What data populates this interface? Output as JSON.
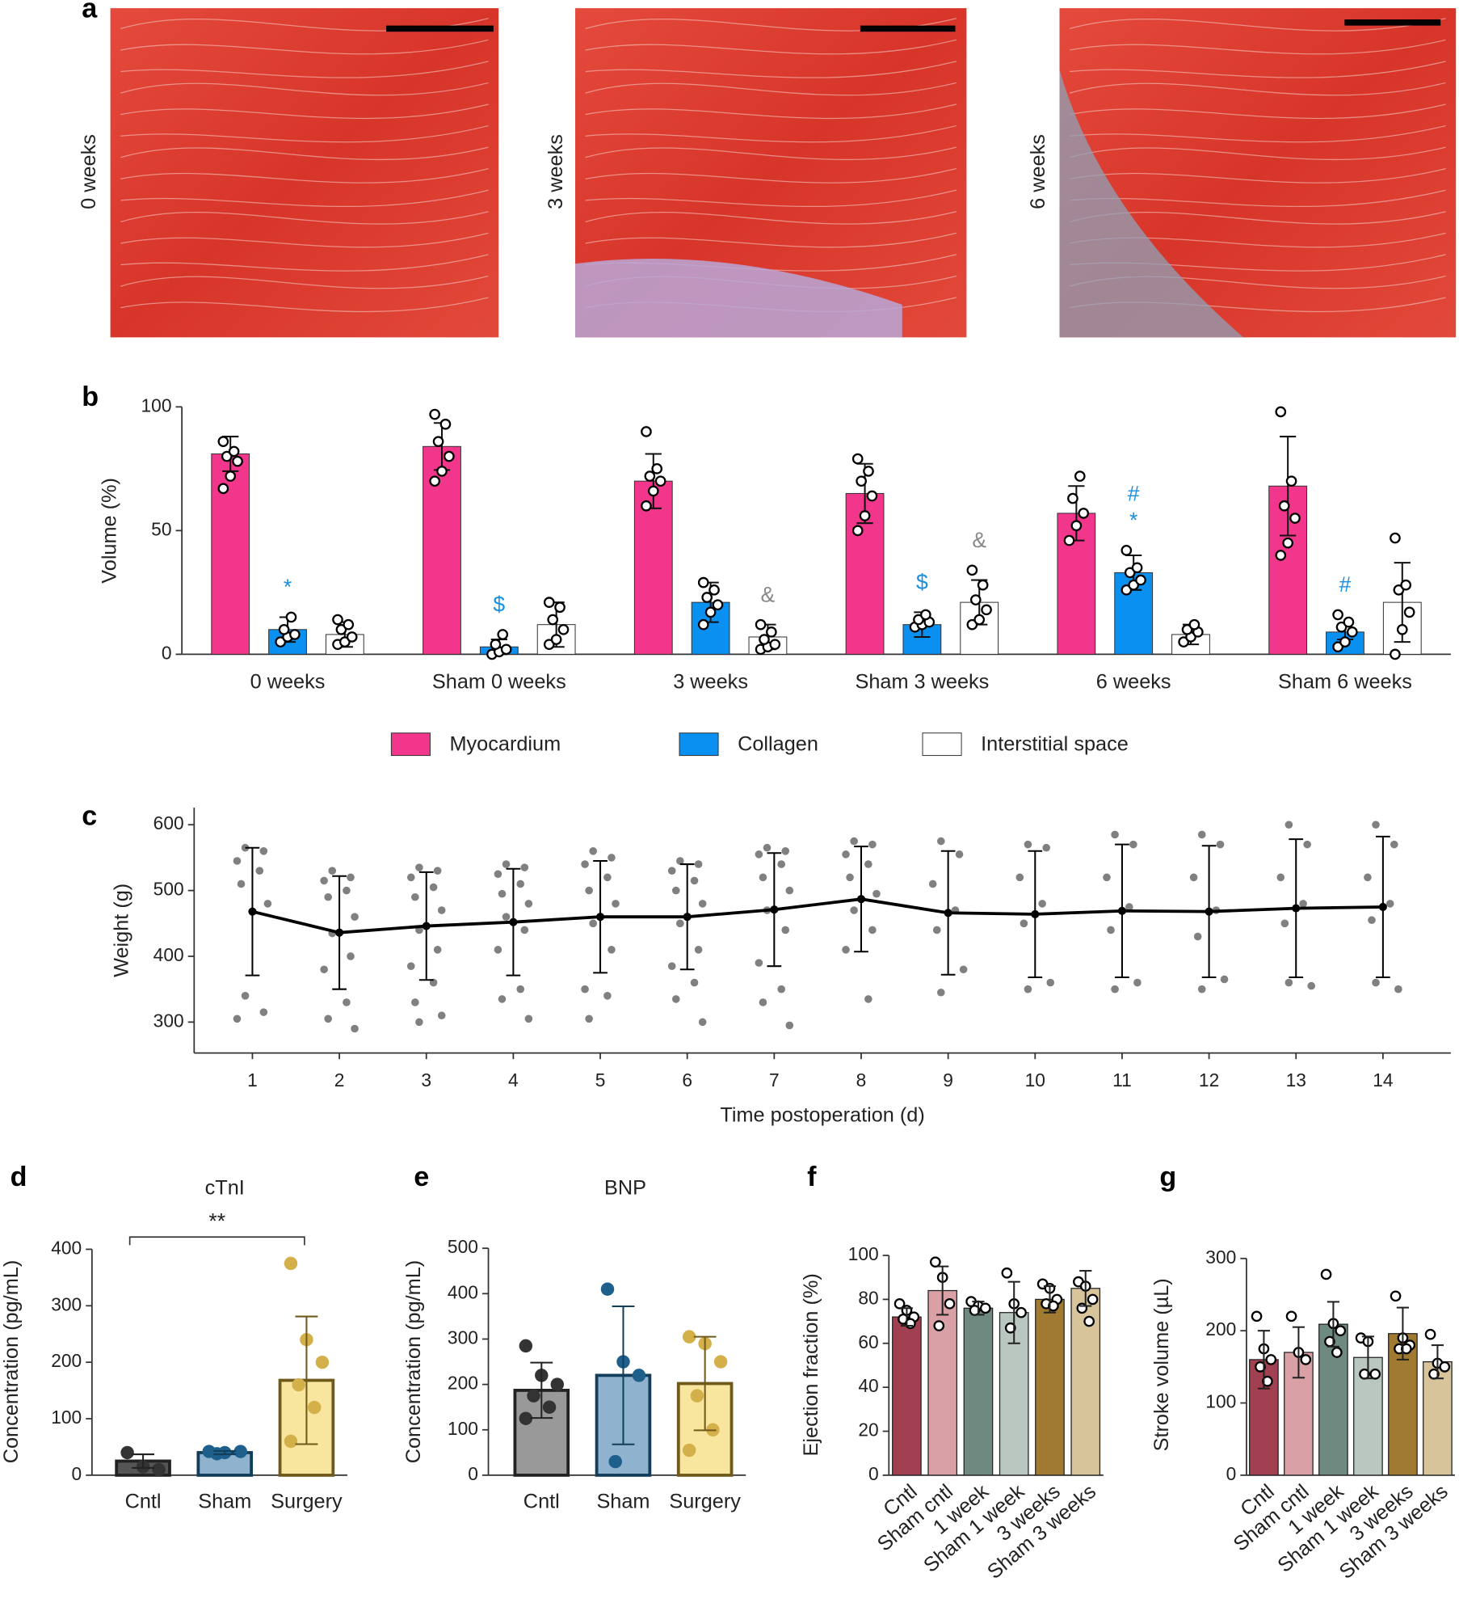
{
  "chart_data": [
    {
      "type": "image",
      "panel_label": "a",
      "labels": [
        "0 weeks",
        "3 weeks",
        "6 weeks"
      ]
    },
    {
      "type": "grouped_bar",
      "panel_label": "b",
      "y_label": "Volume (%)",
      "ylim": [
        0,
        100
      ],
      "yticks": [
        0,
        50,
        100
      ],
      "marker": "open",
      "categories": [
        "0 weeks",
        "Sham 0 weeks",
        "3 weeks",
        "Sham 3 weeks",
        "6 weeks",
        "Sham 6 weeks"
      ],
      "series": [
        {
          "name": "Myocardium",
          "color": "#f2368c",
          "values": [
            81,
            84,
            70,
            65,
            57,
            68
          ],
          "errors": [
            7,
            9.5,
            11,
            12,
            11,
            20
          ],
          "points": [
            [
              67,
              72,
              78,
              80,
              82,
              86
            ],
            [
              70,
              74,
              80,
              86,
              93,
              97
            ],
            [
              60,
              66,
              70,
              72,
              75,
              90
            ],
            [
              50,
              56,
              64,
              70,
              74,
              79
            ],
            [
              46,
              52,
              57,
              63,
              72
            ],
            [
              40,
              45,
              55,
              60,
              70,
              98
            ]
          ]
        },
        {
          "name": "Collagen",
          "color": "#0a90f0",
          "values": [
            10,
            3,
            21,
            12,
            33,
            9
          ],
          "errors": [
            5,
            3,
            8,
            5,
            7,
            3
          ],
          "points": [
            [
              5,
              7,
              8,
              10,
              15
            ],
            [
              0,
              1,
              2,
              4,
              8
            ],
            [
              12,
              17,
              20,
              23,
              26,
              29
            ],
            [
              11,
              12,
              13,
              14,
              16
            ],
            [
              26,
              28,
              30,
              33,
              35,
              42
            ],
            [
              3,
              5,
              9,
              11,
              13,
              16
            ]
          ]
        },
        {
          "name": "Interstitial space",
          "color": "#ffffff",
          "values": [
            8,
            12,
            7,
            21,
            8,
            21
          ],
          "errors": [
            5,
            9,
            5,
            9,
            4,
            16
          ],
          "points": [
            [
              4,
              5,
              7,
              10,
              12,
              14
            ],
            [
              4,
              6,
              10,
              14,
              19,
              21
            ],
            [
              2,
              3,
              4,
              6,
              9,
              12
            ],
            [
              12,
              14,
              18,
              22,
              28,
              34
            ],
            [
              5,
              7,
              9,
              10,
              12
            ],
            [
              0,
              10,
              17,
              26,
              28,
              47
            ]
          ]
        }
      ],
      "annotations": [
        {
          "text": "*",
          "category": "0 weeks",
          "series": "Collagen",
          "color": "#1a8fe0"
        },
        {
          "text": "$",
          "category": "Sham 0 weeks",
          "series": "Collagen",
          "color": "#1a8fe0"
        },
        {
          "text": "&",
          "category": "3 weeks",
          "series": "Interstitial space",
          "color": "#888888"
        },
        {
          "text": "$",
          "category": "Sham 3 weeks",
          "series": "Collagen",
          "color": "#1a8fe0"
        },
        {
          "text": "&",
          "category": "Sham 3 weeks",
          "series": "Interstitial space",
          "color": "#888888"
        },
        {
          "text": "*",
          "category": "6 weeks",
          "series": "Collagen",
          "color": "#1a8fe0"
        },
        {
          "text": "#",
          "category": "6 weeks",
          "series": "Collagen",
          "color": "#1a8fe0"
        },
        {
          "text": "#",
          "category": "Sham 6 weeks",
          "series": "Collagen",
          "color": "#1a8fe0"
        }
      ]
    },
    {
      "type": "line",
      "panel_label": "c",
      "y_label": "Weight (g)",
      "x_label": "Time postoperation (d)",
      "color": "#000000",
      "point_color": "#808080",
      "xlim": [
        0.33,
        14.78
      ],
      "ylim": [
        253,
        626
      ],
      "xticks": [
        1,
        2,
        3,
        4,
        5,
        6,
        7,
        8,
        9,
        10,
        11,
        12,
        13,
        14
      ],
      "yticks": [
        300,
        400,
        500,
        600
      ],
      "x": [
        1,
        2,
        3,
        4,
        5,
        6,
        7,
        8,
        9,
        10,
        11,
        12,
        13,
        14
      ],
      "values": [
        468,
        436,
        446,
        452,
        460,
        460,
        471,
        487,
        466,
        464,
        469,
        468,
        473,
        475
      ],
      "errors": [
        97,
        86,
        82,
        81,
        85,
        80,
        86,
        80,
        94,
        96,
        101,
        100,
        105,
        107
      ],
      "points": [
        [
          565,
          560,
          545,
          530,
          510,
          480,
          340,
          315,
          305
        ],
        [
          530,
          520,
          515,
          500,
          490,
          460,
          435,
          400,
          380,
          330,
          305,
          290
        ],
        [
          535,
          530,
          520,
          505,
          490,
          470,
          440,
          410,
          385,
          360,
          330,
          310,
          300
        ],
        [
          540,
          535,
          525,
          510,
          495,
          480,
          460,
          440,
          410,
          350,
          335,
          305
        ],
        [
          560,
          550,
          540,
          520,
          500,
          480,
          450,
          410,
          350,
          340,
          305
        ],
        [
          545,
          540,
          530,
          515,
          500,
          480,
          450,
          410,
          385,
          360,
          335,
          300
        ],
        [
          565,
          560,
          555,
          540,
          520,
          500,
          470,
          440,
          390,
          350,
          330,
          295
        ],
        [
          575,
          570,
          555,
          540,
          520,
          495,
          470,
          440,
          410,
          335
        ],
        [
          575,
          555,
          510,
          470,
          440,
          380,
          345
        ],
        [
          570,
          565,
          520,
          480,
          450,
          360,
          350
        ],
        [
          585,
          570,
          520,
          475,
          440,
          360,
          350
        ],
        [
          585,
          570,
          520,
          470,
          430,
          365,
          350
        ],
        [
          600,
          570,
          520,
          480,
          450,
          355,
          360
        ],
        [
          600,
          570,
          520,
          480,
          455,
          350,
          360
        ]
      ]
    },
    {
      "type": "bar",
      "panel_label": "d",
      "title": "cTnI",
      "y_label": "Concentration (pg/mL)",
      "ylim": [
        0,
        400
      ],
      "yticks": [
        0,
        100,
        200,
        300,
        400
      ],
      "marker": "filled",
      "categories": [
        "Cntl",
        "Sham",
        "Surgery"
      ],
      "values": [
        25,
        40,
        168
      ],
      "errors": [
        12,
        3,
        113
      ],
      "colors": [
        "#555555",
        "#8fb3cf",
        "#f8e59e"
      ],
      "edge_colors": [
        "#222222",
        "#123e5c",
        "#6f5a1c"
      ],
      "point_colors": [
        "#333333",
        "#1f5f8c",
        "#d4b04a"
      ],
      "points": [
        [
          40,
          15,
          10
        ],
        [
          42,
          40,
          42,
          38
        ],
        [
          375,
          240,
          200,
          160,
          120,
          60
        ]
      ],
      "annotations": [
        {
          "text": "**",
          "from": "Cntl",
          "to": "Surgery"
        }
      ]
    },
    {
      "type": "bar",
      "panel_label": "e",
      "title": "BNP",
      "y_label": "Concentration (pg/mL)",
      "ylim": [
        0,
        500
      ],
      "yticks": [
        0,
        100,
        200,
        300,
        400,
        500
      ],
      "marker": "filled",
      "categories": [
        "Cntl",
        "Sham",
        "Surgery"
      ],
      "values": [
        187,
        220,
        202
      ],
      "errors": [
        61,
        152,
        103
      ],
      "colors": [
        "#999999",
        "#8fb3cf",
        "#f8e59e"
      ],
      "edge_colors": [
        "#222222",
        "#123e5c",
        "#6f5a1c"
      ],
      "point_colors": [
        "#333333",
        "#1f5f8c",
        "#d4b04a"
      ],
      "points": [
        [
          285,
          220,
          200,
          175,
          150,
          125
        ],
        [
          410,
          250,
          220,
          30
        ],
        [
          305,
          290,
          250,
          175,
          100,
          55
        ]
      ]
    },
    {
      "type": "bar",
      "panel_label": "f",
      "y_label": "Ejection fraction (%)",
      "ylim": [
        0,
        100
      ],
      "yticks": [
        0,
        20,
        40,
        60,
        80,
        100
      ],
      "marker": "open",
      "categories": [
        "Cntl",
        "Sham cntl",
        "1 week",
        "Sham 1 week",
        "3 weeks",
        "Sham 3 weeks"
      ],
      "values": [
        72,
        84,
        76,
        74,
        80,
        85
      ],
      "errors": [
        4,
        11,
        3,
        14,
        6,
        8
      ],
      "colors": [
        "#a04050",
        "#d9a0a5",
        "#6e8a80",
        "#bac7c0",
        "#a07a30",
        "#d8c49a"
      ],
      "edge_color": "#222222",
      "points": [
        [
          78,
          75,
          72,
          71,
          69
        ],
        [
          97,
          90,
          78,
          68
        ],
        [
          79,
          77,
          76,
          75
        ],
        [
          92,
          78,
          74,
          67
        ],
        [
          87,
          85,
          80,
          78,
          77
        ],
        [
          88,
          86,
          80,
          76,
          70
        ]
      ]
    },
    {
      "type": "bar",
      "panel_label": "g",
      "y_label": "Stroke volume (µL)",
      "ylim": [
        0,
        300
      ],
      "yticks": [
        0,
        100,
        200,
        300
      ],
      "marker": "open",
      "categories": [
        "Cntl",
        "Sham cntl",
        "1 week",
        "Sham 1 week",
        "3 weeks",
        "Sham 3 weeks"
      ],
      "values": [
        160,
        170,
        209,
        163,
        196,
        157
      ],
      "errors": [
        40,
        35,
        31,
        29,
        36,
        23
      ],
      "colors": [
        "#a04050",
        "#d9a0a5",
        "#6e8a80",
        "#bac7c0",
        "#a07a30",
        "#d8c49a"
      ],
      "edge_color": "#222222",
      "points": [
        [
          220,
          175,
          160,
          150,
          130
        ],
        [
          220,
          170,
          160
        ],
        [
          278,
          210,
          200,
          185,
          170
        ],
        [
          190,
          185,
          140,
          140
        ],
        [
          248,
          190,
          180,
          175,
          175
        ],
        [
          195,
          155,
          150,
          140
        ]
      ]
    }
  ]
}
